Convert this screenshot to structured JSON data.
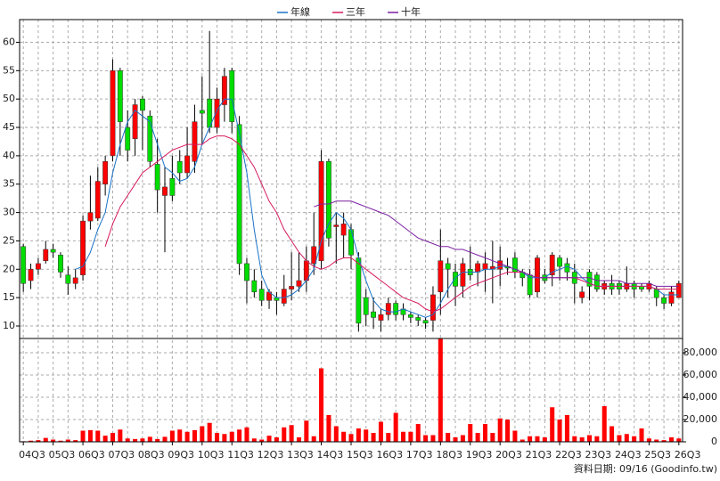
{
  "chart_data": {
    "type": "candlestick",
    "categories": [
      "04Q3",
      null,
      null,
      null,
      "05Q3",
      null,
      null,
      null,
      "06Q3",
      null,
      null,
      null,
      "07Q3",
      null,
      null,
      null,
      "08Q3",
      null,
      null,
      null,
      "09Q3",
      null,
      null,
      null,
      "10Q3",
      null,
      null,
      null,
      "11Q3",
      null,
      null,
      null,
      "12Q3",
      null,
      null,
      null,
      "13Q3",
      null,
      null,
      null,
      "14Q3",
      null,
      null,
      null,
      "15Q3",
      null,
      null,
      null,
      "16Q3",
      null,
      null,
      null,
      "17Q3",
      null,
      null,
      null,
      "18Q3",
      null,
      null,
      null,
      "19Q3",
      null,
      null,
      null,
      "20Q3",
      null,
      null,
      null,
      "21Q3",
      null,
      null,
      null,
      "22Q3",
      null,
      null,
      null,
      "23Q3",
      null,
      null,
      null,
      "24Q3",
      null,
      null,
      null,
      "25Q3",
      null,
      null,
      null,
      "26Q3"
    ],
    "open": [
      24,
      18,
      20,
      21.5,
      23.5,
      22.5,
      19,
      17.5,
      19,
      28.5,
      29,
      35,
      40,
      55,
      45,
      43,
      50,
      47,
      38.5,
      33,
      36,
      39,
      37,
      39,
      48,
      50,
      45,
      49,
      55,
      45.5,
      21,
      18,
      16.5,
      14.5,
      15,
      14,
      16.5,
      17,
      18,
      21,
      21.5,
      39,
      27.5,
      26,
      27,
      22,
      15,
      12.5,
      11,
      12,
      14,
      13,
      12,
      11.5,
      11,
      11,
      16,
      21,
      19.5,
      17,
      20,
      19.5,
      20,
      20,
      20,
      20.5,
      22,
      19.5,
      19,
      16,
      19,
      19,
      22,
      21,
      19.5,
      15,
      19.5,
      19,
      16.5,
      17.5,
      17.5,
      16.5,
      17.5,
      17,
      16.5,
      16.5,
      15,
      14,
      15
    ],
    "high": [
      24.5,
      21,
      22,
      25,
      24.5,
      23,
      20.5,
      20,
      29.5,
      36.5,
      38,
      40,
      57,
      55.5,
      48,
      50,
      50.5,
      48,
      43,
      38,
      40,
      41,
      45,
      49,
      54,
      62,
      52,
      55.5,
      55.5,
      47,
      22,
      20,
      18,
      16.5,
      16,
      19,
      23,
      23,
      24,
      30,
      41,
      39.5,
      30,
      30,
      28,
      23,
      16.5,
      15,
      13,
      15,
      14.5,
      14,
      12.5,
      12,
      11.5,
      17,
      27,
      22,
      21,
      22,
      24,
      21.5,
      23,
      25,
      24,
      22,
      23,
      20,
      20,
      22.5,
      20,
      23,
      22.5,
      22,
      21,
      17,
      20,
      19.5,
      18,
      19,
      18,
      20.5,
      18,
      17.5,
      18,
      17,
      15.5,
      17,
      18
    ],
    "low": [
      16,
      16.5,
      19,
      21,
      22,
      18.5,
      15.5,
      16.5,
      18,
      27,
      28.5,
      33,
      39,
      40,
      39,
      40,
      41,
      38,
      30,
      23,
      32,
      35,
      36,
      37,
      42,
      44,
      44,
      46,
      44,
      19,
      14,
      15,
      13.5,
      13,
      12,
      13.5,
      14.5,
      16,
      16,
      19,
      20,
      24,
      21,
      22,
      20,
      9,
      10,
      9.5,
      9,
      11,
      11,
      11,
      10.5,
      10,
      9.5,
      9,
      12,
      15,
      13.5,
      15,
      18,
      17,
      16,
      14,
      17,
      19,
      18.5,
      17,
      15,
      15,
      17.5,
      17,
      18,
      18,
      14,
      14,
      14.5,
      16,
      15.5,
      15.5,
      15.5,
      16,
      15,
      16,
      16,
      13.5,
      13,
      13.5,
      15
    ],
    "close": [
      17.5,
      20,
      21,
      23.5,
      23,
      19.5,
      17.5,
      18.5,
      28.5,
      30,
      35.5,
      39,
      55,
      46,
      41,
      49,
      48,
      39,
      34,
      34.5,
      33,
      37,
      40,
      46,
      47.5,
      45,
      50,
      54,
      46,
      21,
      18,
      16,
      14.5,
      16,
      14.5,
      16.5,
      17,
      18,
      21.5,
      24,
      39,
      25.5,
      27.8,
      28,
      22.5,
      10.5,
      12,
      11.5,
      12,
      14,
      12,
      12,
      11.5,
      11,
      10.5,
      15.5,
      21.5,
      20,
      17,
      21,
      19,
      21,
      21,
      20.5,
      21.5,
      20.2,
      19.5,
      18.5,
      15.5,
      22,
      18,
      22.5,
      20.5,
      19.5,
      17.5,
      16,
      17,
      16.5,
      17.5,
      16.5,
      16.5,
      17.5,
      16.5,
      16.5,
      17.5,
      15,
      14,
      16,
      17.5
    ],
    "up_color": "#ff0000",
    "down_color": "#00dd00",
    "ylim": [
      7.8,
      64
    ],
    "yticks": [
      10,
      15,
      20,
      25,
      30,
      35,
      40,
      45,
      50,
      55,
      60
    ],
    "grid": true,
    "series": [
      {
        "name": "年線",
        "color": "#1a73c8",
        "values": [
          null,
          null,
          null,
          null,
          null,
          null,
          null,
          20,
          20.5,
          23,
          27,
          30,
          37,
          42,
          46,
          48,
          47,
          46,
          42,
          38,
          37,
          35.5,
          36,
          38,
          42,
          45,
          48,
          50,
          50,
          44,
          37,
          27,
          19,
          16,
          15,
          15,
          15.5,
          16.5,
          18,
          20,
          25,
          28,
          30,
          29,
          27,
          22,
          18,
          14.5,
          13,
          12.5,
          12.5,
          13,
          12.5,
          12,
          11.5,
          12,
          14,
          16.5,
          18.5,
          19.5,
          19.5,
          19.5,
          20,
          20,
          20.5,
          20.5,
          20,
          19.5,
          18.5,
          18.5,
          18.5,
          19.5,
          20,
          20.5,
          20,
          18.5,
          17.5,
          17,
          17,
          17,
          17,
          17,
          17,
          17,
          17,
          16.5,
          15.5,
          15.5,
          15.5
        ]
      },
      {
        "name": "三年",
        "color": "#d81b60",
        "values": [
          null,
          null,
          null,
          null,
          null,
          null,
          null,
          null,
          null,
          null,
          null,
          24,
          28,
          31,
          33,
          35,
          37,
          38,
          39,
          40,
          41,
          41.5,
          42,
          42,
          42,
          43,
          43.5,
          43.5,
          43,
          42,
          40,
          38,
          35,
          32,
          30,
          27,
          25,
          23,
          21.5,
          20.5,
          20,
          20.5,
          21.5,
          22,
          22,
          21,
          20,
          19,
          18,
          17,
          16,
          15,
          14.5,
          14,
          13,
          12.5,
          13,
          14,
          15,
          16,
          17,
          17.5,
          18,
          18.5,
          19,
          19.5,
          19.5,
          19.5,
          19,
          18.5,
          18.5,
          18.5,
          18.5,
          18.5,
          18.5,
          18,
          17.5,
          17,
          17,
          17,
          17,
          17,
          17,
          17,
          17,
          16.5,
          16.5,
          16.5,
          16.5
        ]
      },
      {
        "name": "十年",
        "color": "#7b1fa2",
        "values": [
          null,
          null,
          null,
          null,
          null,
          null,
          null,
          null,
          null,
          null,
          null,
          null,
          null,
          null,
          null,
          null,
          null,
          null,
          null,
          null,
          null,
          null,
          null,
          null,
          null,
          null,
          null,
          null,
          null,
          null,
          null,
          null,
          null,
          null,
          null,
          null,
          null,
          null,
          null,
          31,
          31.5,
          31.5,
          32,
          32,
          32,
          31.5,
          31,
          30.5,
          30,
          29.5,
          28.5,
          27.5,
          26.5,
          25.5,
          25,
          24.5,
          24,
          24,
          23.5,
          23.5,
          23,
          22.5,
          22,
          21.5,
          21,
          20.5,
          20,
          19.5,
          19,
          18.5,
          18.5,
          18.5,
          18.5,
          18.5,
          18.5,
          18.5,
          18.5,
          18,
          18,
          18,
          18,
          17.5,
          17.5,
          17.5,
          17.5,
          17,
          17,
          17,
          17
        ]
      }
    ],
    "legend": "top",
    "volume": {
      "color": "#ff0000",
      "values": [
        500,
        1000,
        1500,
        3500,
        2000,
        1000,
        2000,
        1500,
        10000,
        10500,
        10000,
        5500,
        8000,
        11000,
        3000,
        2500,
        3000,
        4500,
        2500,
        4500,
        10000,
        11000,
        9000,
        10500,
        14000,
        17000,
        8000,
        7000,
        9000,
        11000,
        13000,
        3000,
        2000,
        5500,
        4000,
        13000,
        15000,
        4000,
        19000,
        5000,
        66000,
        24000,
        14000,
        9000,
        7000,
        12000,
        11000,
        8000,
        18000,
        8000,
        26000,
        9000,
        9000,
        16000,
        6000,
        6000,
        93000,
        8000,
        4000,
        6000,
        16000,
        8000,
        16000,
        8000,
        21000,
        20000,
        10000,
        2000,
        5000,
        5000,
        4000,
        31000,
        20000,
        24000,
        5000,
        4000,
        6000,
        5000,
        32000,
        14000,
        6000,
        7000,
        5000,
        12000,
        3000,
        2000,
        1500,
        4000,
        3000
      ],
      "ylim": [
        0,
        92800
      ],
      "yticks": [
        0,
        {
          "value": 20000,
          "label": "20,000"
        },
        {
          "value": 40000,
          "label": "40,000"
        },
        {
          "value": 60000,
          "label": "60,000"
        },
        {
          "value": 80000,
          "label": "80,000"
        }
      ]
    },
    "footer": "資料日期: 09/16 (Goodinfo.tw)"
  }
}
